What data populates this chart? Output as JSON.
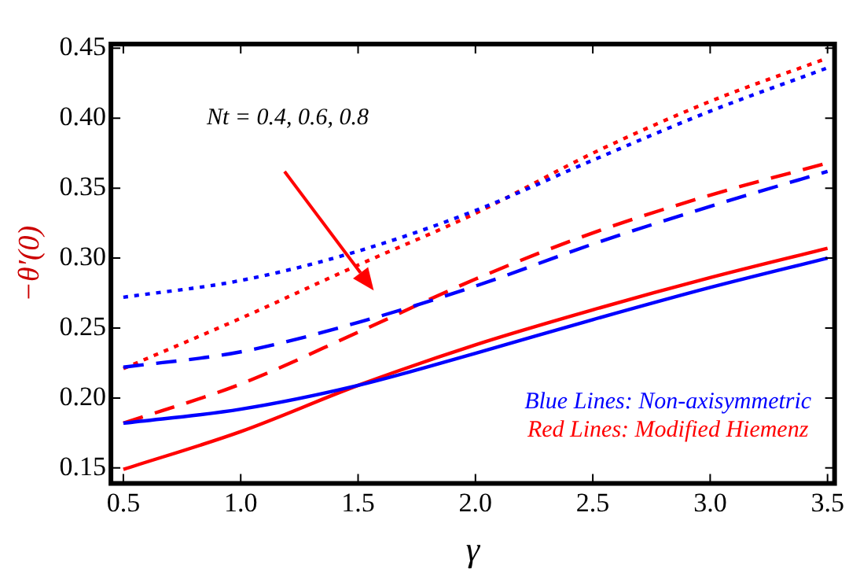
{
  "chart_data": {
    "type": "line",
    "xlabel": "γ",
    "ylabel": "−θ′(0)",
    "x": [
      0.5,
      1.0,
      1.5,
      2.0,
      2.5,
      3.0,
      3.5
    ],
    "series": [
      {
        "color": "#0000ff",
        "line_style": "solid",
        "values": [
          0.182,
          0.192,
          0.209,
          0.232,
          0.256,
          0.279,
          0.3
        ]
      },
      {
        "color": "#ff0000",
        "line_style": "solid",
        "values": [
          0.149,
          0.176,
          0.209,
          0.238,
          0.263,
          0.286,
          0.307
        ]
      },
      {
        "color": "#0000ff",
        "line_style": "dashed",
        "values": [
          0.222,
          0.233,
          0.254,
          0.28,
          0.31,
          0.337,
          0.362
        ]
      },
      {
        "color": "#ff0000",
        "line_style": "dashed",
        "values": [
          0.182,
          0.21,
          0.247,
          0.285,
          0.318,
          0.345,
          0.368
        ]
      },
      {
        "color": "#0000ff",
        "line_style": "dotted",
        "values": [
          0.272,
          0.284,
          0.305,
          0.334,
          0.37,
          0.405,
          0.436
        ]
      },
      {
        "color": "#ff0000",
        "line_style": "dotted",
        "values": [
          0.221,
          0.257,
          0.295,
          0.332,
          0.375,
          0.412,
          0.443
        ]
      }
    ],
    "xlim": [
      0.447,
      3.53
    ],
    "xticks": [
      0.5,
      {
        "value": 1.0,
        "label": "1.0"
      },
      1.5,
      {
        "value": 2.0,
        "label": "2.0"
      },
      2.5,
      {
        "value": 3.0,
        "label": "3.0"
      },
      3.5
    ],
    "ylim": [
      0.139,
      0.453
    ],
    "yticks": [
      0.15,
      {
        "value": 0.2,
        "label": "0.20"
      },
      0.25,
      {
        "value": 0.3,
        "label": "0.30"
      },
      0.35,
      {
        "value": 0.4,
        "label": "0.40"
      },
      0.45
    ],
    "annotations": [
      "Nt = 0.4, 0.6, 0.8",
      "Blue Lines: Non-axisymmetric",
      "Red Lines: Modified Hiemenz"
    ]
  }
}
